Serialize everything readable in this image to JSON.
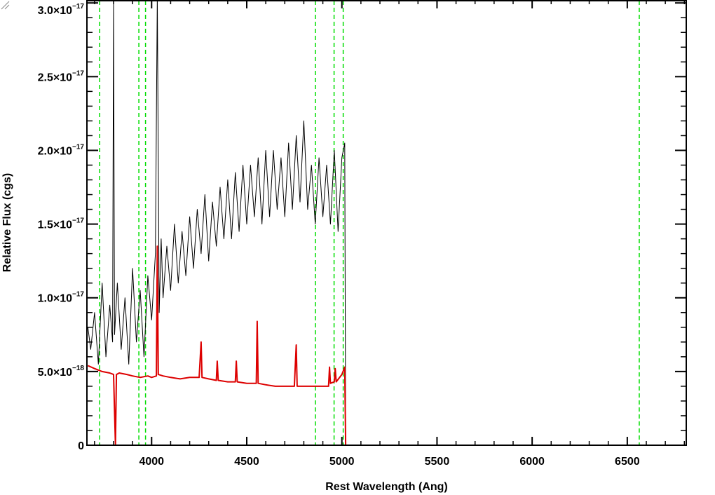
{
  "chart_data": {
    "type": "line",
    "xlabel": "Rest Wavelength (Ang)",
    "ylabel": "Relative Flux (cgs)",
    "xlim": [
      3660,
      6810
    ],
    "ylim": [
      0,
      3.02e-17
    ],
    "x_ticks": [
      4000,
      4500,
      5000,
      5500,
      6000,
      6500
    ],
    "x_tick_labels": [
      "4000",
      "4500",
      "5000",
      "5500",
      "6000",
      "6500"
    ],
    "y_ticks": [
      0,
      5e-18,
      1e-17,
      1.5e-17,
      2e-17,
      2.5e-17,
      3e-17
    ],
    "y_tick_labels": [
      {
        "mantissa": "0",
        "exp": ""
      },
      {
        "mantissa": "5.0×10",
        "exp": "−18"
      },
      {
        "mantissa": "1.0×10",
        "exp": "−17"
      },
      {
        "mantissa": "1.5×10",
        "exp": "−17"
      },
      {
        "mantissa": "2.0×10",
        "exp": "−17"
      },
      {
        "mantissa": "2.5×10",
        "exp": "−17"
      },
      {
        "mantissa": "3.0×10",
        "exp": "−17"
      }
    ],
    "vlines": {
      "color": "#00dd00",
      "style": "dashed",
      "x": [
        3727,
        3933,
        3968,
        4861,
        4959,
        5007,
        6563
      ]
    },
    "series": [
      {
        "color": "#000000",
        "width": 1,
        "x": [
          3665,
          3680,
          3700,
          3720,
          3740,
          3760,
          3780,
          3795,
          3800,
          3805,
          3820,
          3840,
          3860,
          3880,
          3900,
          3920,
          3940,
          3960,
          3980,
          4000,
          4020,
          4030,
          4040,
          4050,
          4060,
          4080,
          4100,
          4120,
          4140,
          4160,
          4180,
          4200,
          4220,
          4240,
          4260,
          4280,
          4300,
          4320,
          4340,
          4360,
          4380,
          4400,
          4420,
          4440,
          4460,
          4480,
          4500,
          4520,
          4540,
          4560,
          4580,
          4600,
          4620,
          4640,
          4660,
          4680,
          4700,
          4720,
          4740,
          4760,
          4780,
          4800,
          4820,
          4840,
          4860,
          4880,
          4900,
          4920,
          4940,
          4960,
          4980,
          5000,
          5015,
          5020
        ],
        "y": [
          8e-18,
          6.5e-18,
          9e-18,
          5.5e-18,
          1.1e-17,
          6e-18,
          9.5e-18,
          7e-18,
          3e-17,
          7.5e-18,
          1.1e-17,
          6.5e-18,
          1e-17,
          5.5e-18,
          1.2e-17,
          7e-18,
          1.05e-17,
          6e-18,
          1.15e-17,
          8.5e-18,
          1.3e-17,
          3.05e-17,
          9e-18,
          1.4e-17,
          1e-17,
          1.35e-17,
          1.05e-17,
          1.5e-17,
          1.1e-17,
          1.45e-17,
          1.15e-17,
          1.55e-17,
          1.2e-17,
          1.6e-17,
          1.3e-17,
          1.7e-17,
          1.25e-17,
          1.65e-17,
          1.35e-17,
          1.75e-17,
          1.4e-17,
          1.8e-17,
          1.4e-17,
          1.85e-17,
          1.45e-17,
          1.9e-17,
          1.5e-17,
          1.9e-17,
          1.55e-17,
          1.95e-17,
          1.5e-17,
          2e-17,
          1.55e-17,
          2e-17,
          1.6e-17,
          1.95e-17,
          1.55e-17,
          2.05e-17,
          1.6e-17,
          2.1e-17,
          1.65e-17,
          2.2e-17,
          1.6e-17,
          1.9e-17,
          1.5e-17,
          1.95e-17,
          1.55e-17,
          1.9e-17,
          1.5e-17,
          2e-17,
          1.45e-17,
          1.95e-17,
          2.05e-17,
          0
        ]
      },
      {
        "color": "#dd0000",
        "width": 2,
        "x": [
          3665,
          3700,
          3740,
          3780,
          3800,
          3810,
          3815,
          3830,
          3870,
          3900,
          3940,
          3980,
          4000,
          4025,
          4030,
          4035,
          4060,
          4100,
          4150,
          4200,
          4250,
          4260,
          4265,
          4300,
          4340,
          4345,
          4350,
          4400,
          4440,
          4445,
          4450,
          4500,
          4550,
          4555,
          4560,
          4600,
          4650,
          4700,
          4750,
          4760,
          4765,
          4800,
          4850,
          4900,
          4930,
          4935,
          4940,
          4960,
          4965,
          4970,
          5000,
          5015,
          5020,
          5030,
          5100,
          5500,
          6000,
          6500,
          6810
        ],
        "y": [
          5.4e-18,
          5.2e-18,
          5e-18,
          4.9e-18,
          4.8e-18,
          0,
          4.8e-18,
          4.9e-18,
          4.8e-18,
          4.7e-18,
          4.6e-18,
          4.7e-18,
          4.6e-18,
          4.7e-18,
          1.35e-17,
          4.8e-18,
          4.7e-18,
          4.6e-18,
          4.5e-18,
          4.6e-18,
          4.6e-18,
          7e-18,
          4.6e-18,
          4.5e-18,
          4.4e-18,
          5.7e-18,
          4.4e-18,
          4.3e-18,
          4.3e-18,
          5.7e-18,
          4.3e-18,
          4.2e-18,
          4.2e-18,
          8.4e-18,
          4.2e-18,
          4.1e-18,
          4e-18,
          4e-18,
          4e-18,
          6.8e-18,
          4e-18,
          4e-18,
          4e-18,
          4e-18,
          4e-18,
          5.3e-18,
          4.2e-18,
          4.3e-18,
          5.2e-18,
          4.3e-18,
          4.8e-18,
          5.3e-18,
          0,
          0,
          0,
          0,
          0,
          0,
          0
        ]
      }
    ],
    "grid": false,
    "legend": "none"
  }
}
